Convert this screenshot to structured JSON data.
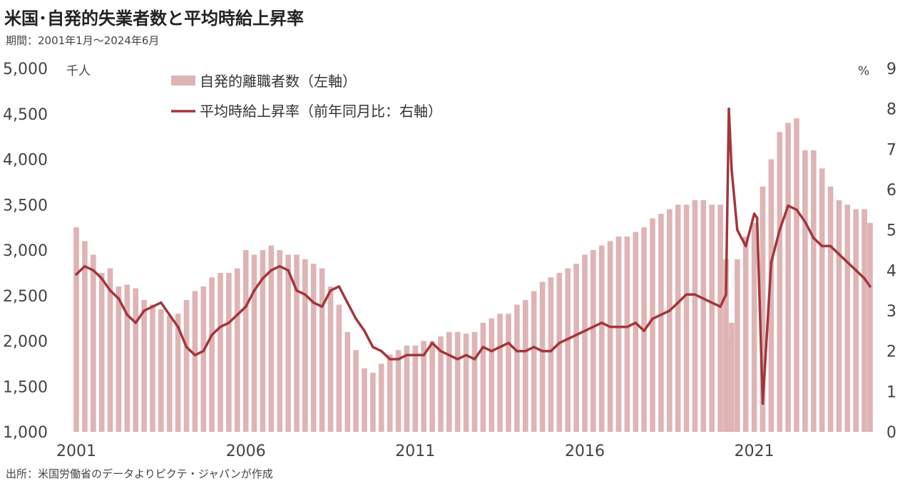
{
  "title": "米国･自発的失業者数と平均時給上昇率",
  "subtitle": "期間：2001年1月～2024年6月",
  "source": "出所：米国労働省のデータよりピクテ・ジャパンが作成",
  "chart_data": {
    "type": "bar+line",
    "x_axis": {
      "start": "2001-01",
      "end": "2024-06",
      "tick_labels": [
        "2001",
        "2006",
        "2011",
        "2016",
        "2021"
      ]
    },
    "y_left": {
      "unit": "千人",
      "ylim": [
        1000,
        5000
      ],
      "ticks": [
        "1,000",
        "1,500",
        "2,000",
        "2,500",
        "3,000",
        "3,500",
        "4,000",
        "4,500",
        "5,000"
      ]
    },
    "y_right": {
      "unit": "%",
      "ylim": [
        0,
        9
      ],
      "ticks": [
        "0",
        "1",
        "2",
        "3",
        "4",
        "5",
        "6",
        "7",
        "8",
        "9"
      ]
    },
    "legend": {
      "placement": "top-left"
    },
    "colors": {
      "bar": "#dfb4b4",
      "line": "#a3363c"
    },
    "series": [
      {
        "name": "自発的離職者数（左軸）",
        "type": "bar",
        "axis": "left",
        "points": [
          [
            "2001-01",
            3250
          ],
          [
            "2001-04",
            3100
          ],
          [
            "2001-07",
            2950
          ],
          [
            "2001-10",
            2750
          ],
          [
            "2002-01",
            2800
          ],
          [
            "2002-04",
            2600
          ],
          [
            "2002-07",
            2620
          ],
          [
            "2002-10",
            2580
          ],
          [
            "2003-01",
            2450
          ],
          [
            "2003-04",
            2400
          ],
          [
            "2003-07",
            2350
          ],
          [
            "2003-10",
            2280
          ],
          [
            "2004-01",
            2300
          ],
          [
            "2004-04",
            2450
          ],
          [
            "2004-07",
            2550
          ],
          [
            "2004-10",
            2600
          ],
          [
            "2005-01",
            2700
          ],
          [
            "2005-04",
            2750
          ],
          [
            "2005-07",
            2750
          ],
          [
            "2005-10",
            2800
          ],
          [
            "2006-01",
            3000
          ],
          [
            "2006-04",
            2950
          ],
          [
            "2006-07",
            3000
          ],
          [
            "2006-10",
            3050
          ],
          [
            "2007-01",
            3000
          ],
          [
            "2007-04",
            2950
          ],
          [
            "2007-07",
            2950
          ],
          [
            "2007-10",
            2900
          ],
          [
            "2008-01",
            2850
          ],
          [
            "2008-04",
            2800
          ],
          [
            "2008-07",
            2600
          ],
          [
            "2008-10",
            2400
          ],
          [
            "2009-01",
            2100
          ],
          [
            "2009-04",
            1900
          ],
          [
            "2009-07",
            1700
          ],
          [
            "2009-10",
            1650
          ],
          [
            "2010-01",
            1750
          ],
          [
            "2010-04",
            1850
          ],
          [
            "2010-07",
            1900
          ],
          [
            "2010-10",
            1950
          ],
          [
            "2011-01",
            1950
          ],
          [
            "2011-04",
            2000
          ],
          [
            "2011-07",
            2000
          ],
          [
            "2011-10",
            2050
          ],
          [
            "2012-01",
            2100
          ],
          [
            "2012-04",
            2100
          ],
          [
            "2012-07",
            2080
          ],
          [
            "2012-10",
            2100
          ],
          [
            "2013-01",
            2200
          ],
          [
            "2013-04",
            2250
          ],
          [
            "2013-07",
            2300
          ],
          [
            "2013-10",
            2300
          ],
          [
            "2014-01",
            2400
          ],
          [
            "2014-04",
            2450
          ],
          [
            "2014-07",
            2550
          ],
          [
            "2014-10",
            2650
          ],
          [
            "2015-01",
            2700
          ],
          [
            "2015-04",
            2750
          ],
          [
            "2015-07",
            2800
          ],
          [
            "2015-10",
            2850
          ],
          [
            "2016-01",
            2950
          ],
          [
            "2016-04",
            3000
          ],
          [
            "2016-07",
            3050
          ],
          [
            "2016-10",
            3100
          ],
          [
            "2017-01",
            3150
          ],
          [
            "2017-04",
            3150
          ],
          [
            "2017-07",
            3200
          ],
          [
            "2017-10",
            3250
          ],
          [
            "2018-01",
            3350
          ],
          [
            "2018-04",
            3400
          ],
          [
            "2018-07",
            3450
          ],
          [
            "2018-10",
            3500
          ],
          [
            "2019-01",
            3500
          ],
          [
            "2019-04",
            3550
          ],
          [
            "2019-07",
            3550
          ],
          [
            "2019-10",
            3500
          ],
          [
            "2020-01",
            3500
          ],
          [
            "2020-03",
            2900
          ],
          [
            "2020-04",
            2000
          ],
          [
            "2020-05",
            2200
          ],
          [
            "2020-07",
            2900
          ],
          [
            "2020-10",
            3150
          ],
          [
            "2021-01",
            3300
          ],
          [
            "2021-04",
            3700
          ],
          [
            "2021-07",
            4000
          ],
          [
            "2021-10",
            4300
          ],
          [
            "2022-01",
            4400
          ],
          [
            "2022-04",
            4450
          ],
          [
            "2022-07",
            4100
          ],
          [
            "2022-10",
            4100
          ],
          [
            "2023-01",
            3900
          ],
          [
            "2023-04",
            3700
          ],
          [
            "2023-07",
            3550
          ],
          [
            "2023-10",
            3500
          ],
          [
            "2024-01",
            3450
          ],
          [
            "2024-04",
            3450
          ],
          [
            "2024-06",
            3300
          ]
        ]
      },
      {
        "name": "平均時給上昇率（前年同月比：右軸）",
        "type": "line",
        "axis": "right",
        "points": [
          [
            "2001-01",
            3.9
          ],
          [
            "2001-04",
            4.1
          ],
          [
            "2001-07",
            4.0
          ],
          [
            "2001-10",
            3.8
          ],
          [
            "2002-01",
            3.5
          ],
          [
            "2002-04",
            3.3
          ],
          [
            "2002-07",
            2.9
          ],
          [
            "2002-10",
            2.7
          ],
          [
            "2003-01",
            3.0
          ],
          [
            "2003-04",
            3.1
          ],
          [
            "2003-07",
            3.2
          ],
          [
            "2003-10",
            2.9
          ],
          [
            "2004-01",
            2.6
          ],
          [
            "2004-04",
            2.1
          ],
          [
            "2004-07",
            1.9
          ],
          [
            "2004-10",
            2.0
          ],
          [
            "2005-01",
            2.4
          ],
          [
            "2005-04",
            2.6
          ],
          [
            "2005-07",
            2.7
          ],
          [
            "2005-10",
            2.9
          ],
          [
            "2006-01",
            3.1
          ],
          [
            "2006-04",
            3.5
          ],
          [
            "2006-07",
            3.8
          ],
          [
            "2006-10",
            4.0
          ],
          [
            "2007-01",
            4.1
          ],
          [
            "2007-04",
            4.0
          ],
          [
            "2007-07",
            3.5
          ],
          [
            "2007-10",
            3.4
          ],
          [
            "2008-01",
            3.2
          ],
          [
            "2008-04",
            3.1
          ],
          [
            "2008-07",
            3.5
          ],
          [
            "2008-10",
            3.6
          ],
          [
            "2009-01",
            3.2
          ],
          [
            "2009-04",
            2.8
          ],
          [
            "2009-07",
            2.5
          ],
          [
            "2009-10",
            2.1
          ],
          [
            "2010-01",
            2.0
          ],
          [
            "2010-04",
            1.8
          ],
          [
            "2010-07",
            1.8
          ],
          [
            "2010-10",
            1.9
          ],
          [
            "2011-01",
            1.9
          ],
          [
            "2011-04",
            1.9
          ],
          [
            "2011-07",
            2.2
          ],
          [
            "2011-10",
            2.0
          ],
          [
            "2012-01",
            1.9
          ],
          [
            "2012-04",
            1.8
          ],
          [
            "2012-07",
            1.9
          ],
          [
            "2012-10",
            1.8
          ],
          [
            "2013-01",
            2.1
          ],
          [
            "2013-04",
            2.0
          ],
          [
            "2013-07",
            2.1
          ],
          [
            "2013-10",
            2.2
          ],
          [
            "2014-01",
            2.0
          ],
          [
            "2014-04",
            2.0
          ],
          [
            "2014-07",
            2.1
          ],
          [
            "2014-10",
            2.0
          ],
          [
            "2015-01",
            2.0
          ],
          [
            "2015-04",
            2.2
          ],
          [
            "2015-07",
            2.3
          ],
          [
            "2015-10",
            2.4
          ],
          [
            "2016-01",
            2.5
          ],
          [
            "2016-04",
            2.6
          ],
          [
            "2016-07",
            2.7
          ],
          [
            "2016-10",
            2.6
          ],
          [
            "2017-01",
            2.6
          ],
          [
            "2017-04",
            2.6
          ],
          [
            "2017-07",
            2.7
          ],
          [
            "2017-10",
            2.5
          ],
          [
            "2018-01",
            2.8
          ],
          [
            "2018-04",
            2.9
          ],
          [
            "2018-07",
            3.0
          ],
          [
            "2018-10",
            3.2
          ],
          [
            "2019-01",
            3.4
          ],
          [
            "2019-04",
            3.4
          ],
          [
            "2019-07",
            3.3
          ],
          [
            "2019-10",
            3.2
          ],
          [
            "2020-01",
            3.1
          ],
          [
            "2020-03",
            3.4
          ],
          [
            "2020-04",
            8.0
          ],
          [
            "2020-05",
            6.5
          ],
          [
            "2020-07",
            5.0
          ],
          [
            "2020-10",
            4.6
          ],
          [
            "2021-01",
            5.4
          ],
          [
            "2021-02",
            5.3
          ],
          [
            "2021-04",
            0.7
          ],
          [
            "2021-07",
            4.2
          ],
          [
            "2021-10",
            5.0
          ],
          [
            "2022-01",
            5.6
          ],
          [
            "2022-04",
            5.5
          ],
          [
            "2022-07",
            5.2
          ],
          [
            "2022-10",
            4.8
          ],
          [
            "2023-01",
            4.6
          ],
          [
            "2023-04",
            4.6
          ],
          [
            "2023-07",
            4.4
          ],
          [
            "2023-10",
            4.2
          ],
          [
            "2024-01",
            4.0
          ],
          [
            "2024-04",
            3.8
          ],
          [
            "2024-06",
            3.6
          ]
        ]
      }
    ]
  }
}
